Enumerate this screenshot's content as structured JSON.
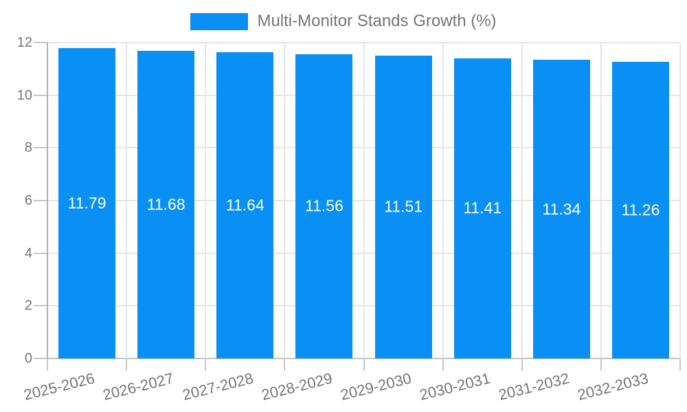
{
  "chart_data": {
    "type": "bar",
    "title": "Multi-Monitor Stands Growth (%)",
    "categories": [
      "2025-2026",
      "2026-2027",
      "2027-2028",
      "2028-2029",
      "2029-2030",
      "2030-2031",
      "2031-2032",
      "2032-2033"
    ],
    "values": [
      11.79,
      11.68,
      11.64,
      11.56,
      11.51,
      11.41,
      11.34,
      11.26
    ],
    "xlabel": "",
    "ylabel": "",
    "ylim": [
      0,
      12
    ],
    "yticks": [
      0,
      2,
      4,
      6,
      8,
      10,
      12
    ],
    "grid": true,
    "legend_position": "top-center",
    "colors": {
      "bar": "#0a90f5",
      "legend_text": "#757575",
      "tick_label_text": "#757575",
      "value_label_text": "#ffffff",
      "gridline": "#e6e6e6",
      "baseline": "#c2c2c2",
      "axis_line": "#b0b0b0",
      "tick_mark": "#c6c6c6",
      "background": "#ffffff"
    }
  }
}
